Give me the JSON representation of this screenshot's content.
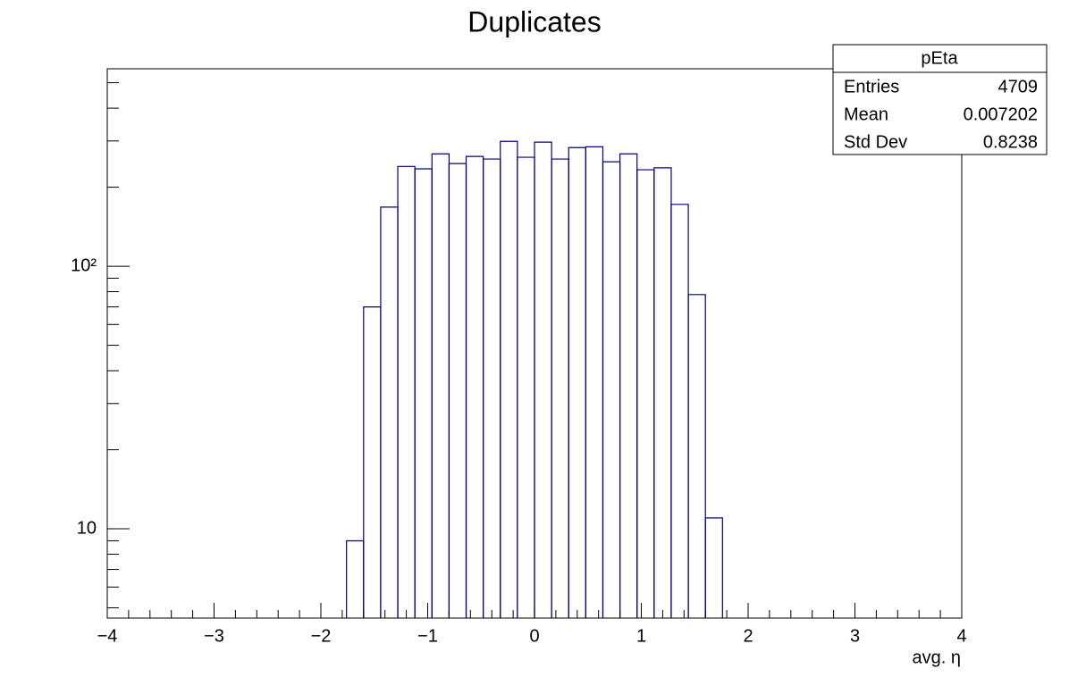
{
  "chart_data": {
    "type": "histogram",
    "title": "Duplicates",
    "x_label": "avg. η",
    "bins": [
      -1.76,
      -1.6,
      -1.44,
      -1.28,
      -1.12,
      -0.96,
      -0.8,
      -0.64,
      -0.48,
      -0.32,
      -0.16,
      0,
      0.16,
      0.32,
      0.48,
      0.64,
      0.8,
      0.96,
      1.12,
      1.28,
      1.44,
      1.6,
      1.76
    ],
    "values": [
      9,
      70,
      168,
      240,
      235,
      268,
      246,
      262,
      256,
      299,
      260,
      297,
      256,
      283,
      285,
      250,
      268,
      233,
      237,
      172,
      78,
      11
    ],
    "color": "#000080",
    "xlim": [
      -4,
      4
    ],
    "xticks": [
      {
        "value": -4,
        "label": "−4"
      },
      {
        "value": -3,
        "label": "−3"
      },
      {
        "value": -2,
        "label": "−2"
      },
      {
        "value": -1,
        "label": "−1"
      },
      0,
      1,
      2,
      3,
      4
    ],
    "ylim": [
      4.57,
      565
    ],
    "log_y": true,
    "yticks": [
      10,
      {
        "value": 100,
        "label": "10²"
      }
    ],
    "stats_box": {
      "name": "pEta",
      "entries": [
        {
          "label": "Entries",
          "value": 4709
        },
        {
          "label": "Mean",
          "value": 0.007202
        },
        {
          "label": "Std Dev",
          "value": 0.8238
        }
      ]
    }
  }
}
